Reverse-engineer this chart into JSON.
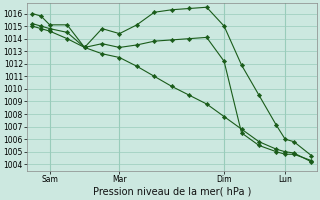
{
  "background_color": "#cce8e0",
  "grid_color": "#99ccbb",
  "line_color": "#1a5c1a",
  "marker_color": "#1a5c1a",
  "xlabel_text": "Pression niveau de la mer( hPa )",
  "ylim": [
    1003.5,
    1016.8
  ],
  "yticks": [
    1004,
    1005,
    1006,
    1007,
    1008,
    1009,
    1010,
    1011,
    1012,
    1013,
    1014,
    1015,
    1016
  ],
  "xlim": [
    -0.3,
    16.3
  ],
  "vlines_x": [
    1.0,
    5.0,
    11.0,
    14.5
  ],
  "xtick_labels": [
    "Sam",
    "Mar",
    "Dim",
    "Lun"
  ],
  "xtick_positions": [
    1.0,
    5.0,
    11.0,
    14.5
  ],
  "series": [
    {
      "x": [
        0,
        0.5,
        1.0,
        2.0,
        3.0,
        4.0,
        5.0,
        6.0,
        7.0,
        8.0,
        9.0,
        10.0,
        11.0,
        12.0,
        13.0,
        14.0,
        14.5,
        15.0,
        16.0
      ],
      "y": [
        1016.0,
        1015.8,
        1015.1,
        1015.1,
        1013.3,
        1014.8,
        1014.4,
        1015.1,
        1016.1,
        1016.3,
        1016.4,
        1016.5,
        1015.0,
        1011.9,
        1009.5,
        1007.1,
        1006.0,
        1005.8,
        1004.7
      ]
    },
    {
      "x": [
        0,
        0.5,
        1.0,
        2.0,
        3.0,
        4.0,
        5.0,
        6.0,
        7.0,
        8.0,
        9.0,
        10.0,
        11.0,
        12.0,
        13.0,
        14.0,
        14.5,
        15.0,
        16.0
      ],
      "y": [
        1015.2,
        1015.0,
        1014.8,
        1014.5,
        1013.3,
        1013.6,
        1013.3,
        1013.5,
        1013.8,
        1013.9,
        1014.0,
        1014.1,
        1012.2,
        1006.5,
        1005.5,
        1005.0,
        1004.8,
        1004.8,
        1004.3
      ]
    },
    {
      "x": [
        0,
        0.5,
        1.0,
        2.0,
        3.0,
        4.0,
        5.0,
        6.0,
        7.0,
        8.0,
        9.0,
        10.0,
        11.0,
        12.0,
        13.0,
        14.0,
        14.5,
        15.0,
        16.0
      ],
      "y": [
        1015.0,
        1014.8,
        1014.6,
        1014.0,
        1013.3,
        1012.8,
        1012.5,
        1011.8,
        1011.0,
        1010.2,
        1009.5,
        1008.8,
        1007.8,
        1006.8,
        1005.8,
        1005.2,
        1005.0,
        1004.9,
        1004.2
      ]
    }
  ],
  "tick_fontsize": 5.5,
  "xlabel_fontsize": 7
}
